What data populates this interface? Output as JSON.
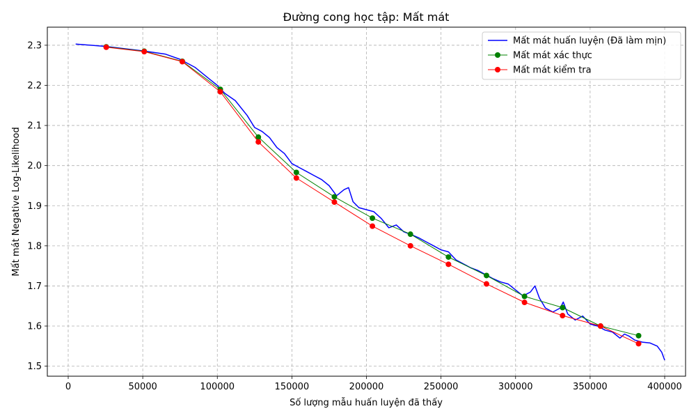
{
  "chart_data": {
    "type": "line",
    "title": "Đường cong học tập: Mất mát",
    "xlabel": "Số lượng mẫu huấn luyện đã thấy",
    "ylabel": "Mất mát Negative Log-Likelihood",
    "xlim": [
      -14000,
      414000
    ],
    "ylim": [
      1.475,
      2.345
    ],
    "x_ticks": [
      0,
      50000,
      100000,
      150000,
      200000,
      250000,
      300000,
      350000,
      400000
    ],
    "y_ticks": [
      1.5,
      1.6,
      1.7,
      1.8,
      1.9,
      2.0,
      2.1,
      2.2,
      2.3
    ],
    "y_tick_labels": [
      "1.5",
      "1.6",
      "1.7",
      "1.8",
      "1.9",
      "2.0",
      "2.1",
      "2.2",
      "2.3"
    ],
    "grid": true,
    "legend_position": "top-right",
    "series": [
      {
        "name": "Mất mát huấn luyện (Đã làm mịn)",
        "color": "#0000ff",
        "marker": "none",
        "x": [
          5000,
          25000,
          50000,
          65000,
          75000,
          85000,
          95000,
          100000,
          105000,
          112000,
          120000,
          125000,
          130000,
          135000,
          140000,
          145000,
          150000,
          155000,
          160000,
          165000,
          170000,
          175000,
          180000,
          185000,
          188000,
          191000,
          195000,
          200000,
          205000,
          210000,
          215000,
          220000,
          225000,
          230000,
          235000,
          240000,
          245000,
          250000,
          255000,
          260000,
          265000,
          270000,
          275000,
          280000,
          285000,
          290000,
          295000,
          300000,
          305000,
          310000,
          313000,
          316000,
          320000,
          325000,
          330000,
          332000,
          335000,
          340000,
          345000,
          350000,
          355000,
          360000,
          365000,
          370000,
          373000,
          376000,
          380000,
          385000,
          390000,
          395000,
          398000,
          400000
        ],
        "y": [
          2.303,
          2.297,
          2.286,
          2.278,
          2.265,
          2.245,
          2.215,
          2.2,
          2.18,
          2.162,
          2.125,
          2.095,
          2.085,
          2.07,
          2.045,
          2.03,
          2.005,
          1.995,
          1.985,
          1.975,
          1.965,
          1.95,
          1.925,
          1.94,
          1.945,
          1.91,
          1.895,
          1.89,
          1.885,
          1.868,
          1.845,
          1.852,
          1.835,
          1.828,
          1.82,
          1.81,
          1.8,
          1.79,
          1.785,
          1.765,
          1.755,
          1.745,
          1.738,
          1.728,
          1.718,
          1.71,
          1.705,
          1.69,
          1.675,
          1.685,
          1.7,
          1.67,
          1.645,
          1.635,
          1.645,
          1.66,
          1.63,
          1.615,
          1.625,
          1.605,
          1.6,
          1.59,
          1.585,
          1.57,
          1.58,
          1.575,
          1.565,
          1.56,
          1.558,
          1.55,
          1.535,
          1.515
        ]
      },
      {
        "name": "Mất mát xác thực",
        "color": "#008000",
        "marker": "circle",
        "x": [
          25500,
          51000,
          76500,
          102000,
          127500,
          153000,
          178500,
          204000,
          229500,
          255000,
          280500,
          306000,
          331500,
          357000,
          382500
        ],
        "y": [
          2.296,
          2.285,
          2.26,
          2.19,
          2.071,
          1.983,
          1.922,
          1.869,
          1.829,
          1.772,
          1.726,
          1.674,
          1.646,
          1.6,
          1.576
        ]
      },
      {
        "name": "Mất mát kiểm tra",
        "color": "#ff0000",
        "marker": "circle",
        "x": [
          25500,
          51000,
          76500,
          102000,
          127500,
          153000,
          178500,
          204000,
          229500,
          255000,
          280500,
          306000,
          331500,
          357000,
          382500
        ],
        "y": [
          2.295,
          2.284,
          2.259,
          2.184,
          2.059,
          1.969,
          1.909,
          1.849,
          1.8,
          1.754,
          1.705,
          1.659,
          1.626,
          1.6,
          1.556
        ]
      }
    ]
  }
}
